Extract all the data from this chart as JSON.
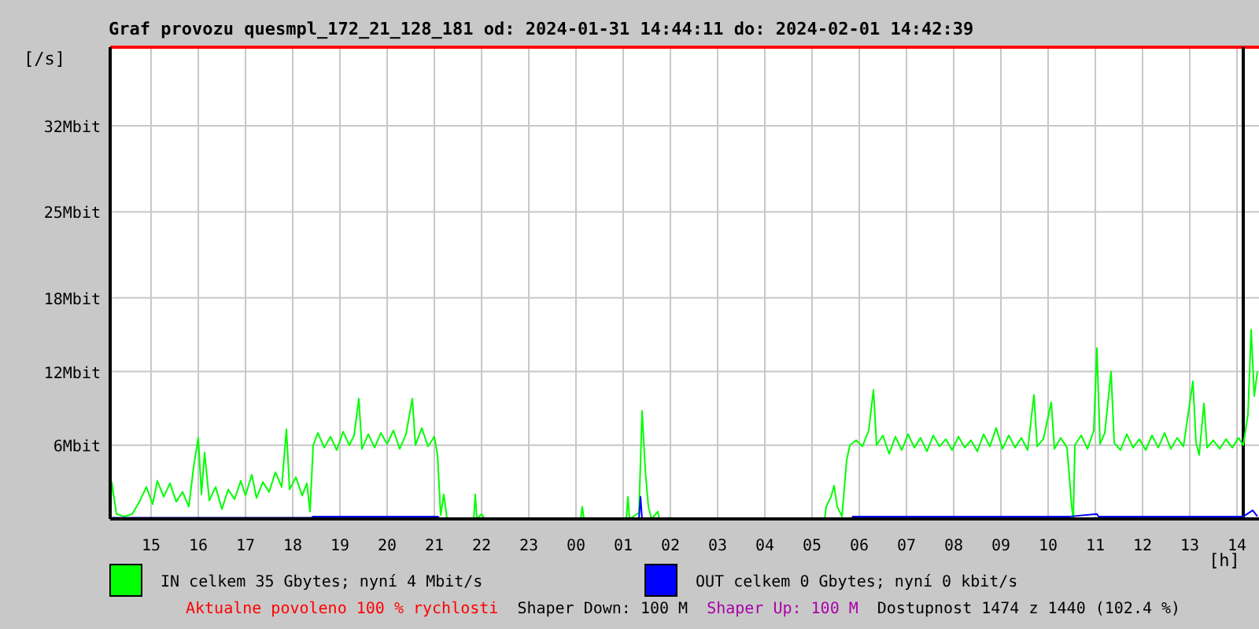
{
  "chart_data": {
    "type": "line",
    "title": "Graf provozu quesmpl_172_21_128_181 od: 2024-01-31 14:44:11 do: 2024-02-01 14:42:39",
    "ylabel": "[/s]",
    "xlabel": "[h]",
    "xlim": [
      "2024-01-31T14:08",
      "2024-02-01T14:28"
    ],
    "xticks": [
      {
        "value": "2024-01-31T15:00",
        "label": "15"
      },
      {
        "value": "2024-01-31T16:00",
        "label": "16"
      },
      {
        "value": "2024-01-31T17:00",
        "label": "17"
      },
      {
        "value": "2024-01-31T18:00",
        "label": "18"
      },
      {
        "value": "2024-01-31T19:00",
        "label": "19"
      },
      {
        "value": "2024-01-31T20:00",
        "label": "20"
      },
      {
        "value": "2024-01-31T21:00",
        "label": "21"
      },
      {
        "value": "2024-01-31T22:00",
        "label": "22"
      },
      {
        "value": "2024-01-31T23:00",
        "label": "23"
      },
      {
        "value": "2024-02-01T00:00",
        "label": "00"
      },
      {
        "value": "2024-02-01T01:00",
        "label": "01"
      },
      {
        "value": "2024-02-01T02:00",
        "label": "02"
      },
      {
        "value": "2024-02-01T03:00",
        "label": "03"
      },
      {
        "value": "2024-02-01T04:00",
        "label": "04"
      },
      {
        "value": "2024-02-01T05:00",
        "label": "05"
      },
      {
        "value": "2024-02-01T06:00",
        "label": "06"
      },
      {
        "value": "2024-02-01T07:00",
        "label": "07"
      },
      {
        "value": "2024-02-01T08:00",
        "label": "08"
      },
      {
        "value": "2024-02-01T09:00",
        "label": "09"
      },
      {
        "value": "2024-02-01T10:00",
        "label": "10"
      },
      {
        "value": "2024-02-01T11:00",
        "label": "11"
      },
      {
        "value": "2024-02-01T12:00",
        "label": "12"
      },
      {
        "value": "2024-02-01T13:00",
        "label": "13"
      },
      {
        "value": "2024-02-01T14:00",
        "label": "14"
      }
    ],
    "ylim": [
      0,
      38.4
    ],
    "yticks": [
      {
        "value": 6,
        "label": "6Mbit"
      },
      {
        "value": 12,
        "label": "12Mbit"
      },
      {
        "value": 18,
        "label": "18Mbit"
      },
      {
        "value": 25,
        "label": "25Mbit"
      },
      {
        "value": 32,
        "label": "32Mbit"
      }
    ],
    "grid": true,
    "legend": "bottom",
    "marker": "none",
    "line_style": "solid",
    "ref_lines": [
      {
        "axis": "y",
        "value": 38.4,
        "label": null,
        "color": "#ff0000"
      },
      {
        "axis": "x",
        "value": "2024-02-01T14:08",
        "label": null,
        "color": "#000000"
      }
    ],
    "series": [
      {
        "name": "IN celkem 35 Gbytes; nyní 4 Mbit/s",
        "color": "#00ff00",
        "x": [
          "2024-01-31T14:08",
          "2024-01-31T14:10",
          "2024-01-31T14:16",
          "2024-01-31T14:26",
          "2024-01-31T14:36",
          "2024-01-31T14:46",
          "2024-01-31T14:54",
          "2024-01-31T15:02",
          "2024-01-31T15:08",
          "2024-01-31T15:16",
          "2024-01-31T15:24",
          "2024-01-31T15:32",
          "2024-01-31T15:40",
          "2024-01-31T15:48",
          "2024-01-31T15:54",
          "2024-01-31T16:00",
          "2024-01-31T16:04",
          "2024-01-31T16:08",
          "2024-01-31T16:14",
          "2024-01-31T16:22",
          "2024-01-31T16:30",
          "2024-01-31T16:38",
          "2024-01-31T16:46",
          "2024-01-31T16:54",
          "2024-01-31T17:00",
          "2024-01-31T17:08",
          "2024-01-31T17:14",
          "2024-01-31T17:22",
          "2024-01-31T17:30",
          "2024-01-31T17:38",
          "2024-01-31T17:46",
          "2024-01-31T17:52",
          "2024-01-31T17:56",
          "2024-01-31T18:04",
          "2024-01-31T18:12",
          "2024-01-31T18:18",
          "2024-01-31T18:22",
          "2024-01-31T18:26",
          "2024-01-31T18:32",
          "2024-01-31T18:40",
          "2024-01-31T18:48",
          "2024-01-31T18:56",
          "2024-01-31T19:04",
          "2024-01-31T19:12",
          "2024-01-31T19:18",
          "2024-01-31T19:24",
          "2024-01-31T19:28",
          "2024-01-31T19:36",
          "2024-01-31T19:44",
          "2024-01-31T19:52",
          "2024-01-31T20:00",
          "2024-01-31T20:08",
          "2024-01-31T20:16",
          "2024-01-31T20:24",
          "2024-01-31T20:32",
          "2024-01-31T20:36",
          "2024-01-31T20:44",
          "2024-01-31T20:52",
          "2024-01-31T21:00",
          "2024-01-31T21:04",
          "2024-01-31T21:08",
          "2024-01-31T21:12",
          "2024-01-31T21:16",
          "2024-01-31T21:50",
          "2024-01-31T21:52",
          "2024-01-31T21:54",
          "2024-01-31T22:00",
          "2024-01-31T22:04",
          "2024-02-01T00:06",
          "2024-02-01T00:08",
          "2024-02-01T00:10",
          "2024-02-01T01:04",
          "2024-02-01T01:06",
          "2024-02-01T01:08",
          "2024-02-01T01:20",
          "2024-02-01T01:24",
          "2024-02-01T01:28",
          "2024-02-01T01:32",
          "2024-02-01T01:36",
          "2024-02-01T01:44",
          "2024-02-01T01:46",
          "2024-02-01T02:00",
          "2024-02-01T02:02",
          "2024-02-01T05:16",
          "2024-02-01T05:18",
          "2024-02-01T05:24",
          "2024-02-01T05:28",
          "2024-02-01T05:32",
          "2024-02-01T05:38",
          "2024-02-01T05:44",
          "2024-02-01T05:48",
          "2024-02-01T05:56",
          "2024-02-01T06:04",
          "2024-02-01T06:12",
          "2024-02-01T06:18",
          "2024-02-01T06:22",
          "2024-02-01T06:30",
          "2024-02-01T06:38",
          "2024-02-01T06:46",
          "2024-02-01T06:54",
          "2024-02-01T07:02",
          "2024-02-01T07:10",
          "2024-02-01T07:18",
          "2024-02-01T07:26",
          "2024-02-01T07:34",
          "2024-02-01T07:42",
          "2024-02-01T07:50",
          "2024-02-01T07:58",
          "2024-02-01T08:06",
          "2024-02-01T08:14",
          "2024-02-01T08:22",
          "2024-02-01T08:30",
          "2024-02-01T08:38",
          "2024-02-01T08:46",
          "2024-02-01T08:54",
          "2024-02-01T09:02",
          "2024-02-01T09:10",
          "2024-02-01T09:18",
          "2024-02-01T09:26",
          "2024-02-01T09:34",
          "2024-02-01T09:42",
          "2024-02-01T09:46",
          "2024-02-01T09:54",
          "2024-02-01T10:04",
          "2024-02-01T10:08",
          "2024-02-01T10:16",
          "2024-02-01T10:24",
          "2024-02-01T10:30",
          "2024-02-01T10:32",
          "2024-02-01T10:34",
          "2024-02-01T10:42",
          "2024-02-01T10:50",
          "2024-02-01T10:58",
          "2024-02-01T11:02",
          "2024-02-01T11:06",
          "2024-02-01T11:12",
          "2024-02-01T11:20",
          "2024-02-01T11:24",
          "2024-02-01T11:32",
          "2024-02-01T11:40",
          "2024-02-01T11:48",
          "2024-02-01T11:56",
          "2024-02-01T12:04",
          "2024-02-01T12:12",
          "2024-02-01T12:20",
          "2024-02-01T12:28",
          "2024-02-01T12:36",
          "2024-02-01T12:44",
          "2024-02-01T12:52",
          "2024-02-01T13:04",
          "2024-02-01T13:08",
          "2024-02-01T13:12",
          "2024-02-01T13:18",
          "2024-02-01T13:22",
          "2024-02-01T13:30",
          "2024-02-01T13:38",
          "2024-02-01T13:46",
          "2024-02-01T13:54",
          "2024-02-01T14:02",
          "2024-02-01T14:08",
          "2024-02-01T14:14",
          "2024-02-01T14:18",
          "2024-02-01T14:22",
          "2024-02-01T14:26"
        ],
        "values": [
          0,
          3.0,
          0.4,
          0.2,
          0.4,
          1.5,
          2.6,
          1.2,
          3.1,
          1.8,
          2.9,
          1.4,
          2.2,
          1.0,
          4.2,
          6.6,
          2.0,
          5.4,
          1.5,
          2.6,
          0.8,
          2.4,
          1.6,
          3.1,
          1.9,
          3.6,
          1.7,
          3.0,
          2.2,
          3.8,
          2.6,
          7.3,
          2.4,
          3.4,
          1.9,
          2.9,
          0.6,
          6.0,
          7.0,
          5.8,
          6.7,
          5.6,
          7.1,
          6.0,
          6.8,
          9.8,
          5.7,
          6.9,
          5.8,
          7.0,
          6.1,
          7.2,
          5.7,
          6.9,
          9.8,
          6.0,
          7.4,
          5.9,
          6.7,
          5.2,
          0.3,
          2.0,
          0,
          0,
          2.0,
          0,
          0.4,
          0,
          0,
          1.0,
          0,
          0,
          1.8,
          0,
          0.5,
          8.8,
          4.0,
          1.0,
          0,
          0.6,
          0,
          0.1,
          0,
          0,
          1.0,
          1.8,
          2.7,
          1.0,
          0.2,
          4.8,
          6.0,
          6.4,
          5.9,
          7.2,
          10.5,
          6.0,
          6.8,
          5.3,
          6.7,
          5.6,
          6.9,
          5.8,
          6.6,
          5.5,
          6.8,
          5.9,
          6.5,
          5.6,
          6.7,
          5.8,
          6.4,
          5.5,
          6.9,
          5.9,
          7.4,
          5.7,
          6.8,
          5.8,
          6.6,
          5.6,
          10.1,
          5.9,
          6.5,
          9.5,
          5.7,
          6.6,
          5.8,
          1.0,
          0,
          6.0,
          6.8,
          5.7,
          7.2,
          13.9,
          6.1,
          7.0,
          12.0,
          6.2,
          5.6,
          6.9,
          5.8,
          6.5,
          5.6,
          6.8,
          5.8,
          7.0,
          5.7,
          6.6,
          5.9,
          11.2,
          6.2,
          5.2,
          9.4,
          5.8,
          6.4,
          5.7,
          6.5,
          5.8,
          6.6,
          6.0,
          8.5,
          15.4,
          10.0,
          12.0
        ]
      },
      {
        "name": "OUT celkem 0 Gbytes; nyní 0 kbit/s",
        "color": "#0000ff",
        "x": [
          "2024-01-31T14:08",
          "2024-01-31T18:24",
          "2024-01-31T18:26",
          "2024-01-31T21:04",
          "2024-01-31T21:08",
          "2024-02-01T01:20",
          "2024-02-01T01:22",
          "2024-02-01T01:24",
          "2024-02-01T05:50",
          "2024-02-01T05:52",
          "2024-02-01T10:28",
          "2024-02-01T11:02",
          "2024-02-01T11:04",
          "2024-02-01T14:08",
          "2024-02-01T14:20",
          "2024-02-01T14:26"
        ],
        "values": [
          0.1,
          0.1,
          0.2,
          0.2,
          0,
          0,
          1.8,
          0,
          0,
          0.2,
          0.2,
          0.4,
          0.2,
          0.2,
          0.7,
          0.2
        ]
      }
    ],
    "annotations": [
      "Aktualne povoleno 100 % rychlosti",
      "Shaper Down: 100 M",
      "Shaper Up: 100 M",
      "Dostupnost 1474 z 1440 (102.4 %)"
    ]
  }
}
